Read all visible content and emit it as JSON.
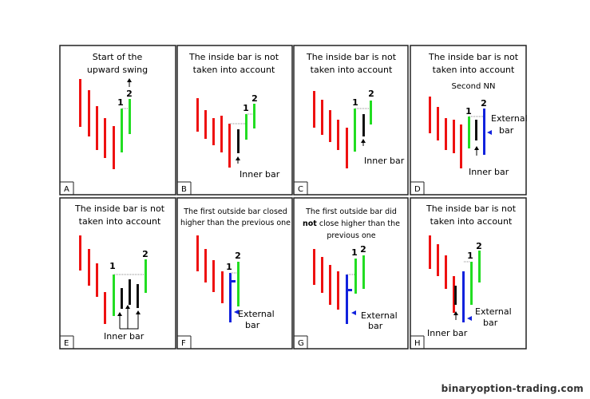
{
  "panels": [
    {
      "id": "A",
      "corner_label": "A",
      "title_lines": [
        "Start of the",
        "upward swing"
      ],
      "bar_labels": [
        "1",
        "2"
      ]
    },
    {
      "id": "B",
      "corner_label": "B",
      "title_lines": [
        "The inside bar is not",
        "taken into account"
      ],
      "bar_labels": [
        "1",
        "2"
      ],
      "notes": {
        "inner": "Inner bar"
      }
    },
    {
      "id": "C",
      "corner_label": "C",
      "title_lines": [
        "The inside bar is not",
        "taken into account"
      ],
      "bar_labels": [
        "1",
        "2"
      ],
      "notes": {
        "inner": "Inner bar"
      }
    },
    {
      "id": "D",
      "corner_label": "D",
      "title_lines": [
        "The inside bar is not",
        "taken into account"
      ],
      "subtitle": "Second NN",
      "bar_labels": [
        "1",
        "2"
      ],
      "notes": {
        "external_1": "External",
        "external_2": "bar",
        "inner": "Inner bar"
      }
    },
    {
      "id": "E",
      "corner_label": "E",
      "title_lines": [
        "The inside bar is not",
        "taken into account"
      ],
      "bar_labels": [
        "1",
        "2"
      ],
      "notes": {
        "inner": "Inner bar"
      }
    },
    {
      "id": "F",
      "corner_label": "F",
      "title_lines": [
        "The first outside bar closed",
        "higher than the previous one"
      ],
      "bar_labels": [
        "1",
        "2"
      ],
      "notes": {
        "external_1": "External",
        "external_2": "bar"
      }
    },
    {
      "id": "G",
      "corner_label": "G",
      "title_lines": [
        "The first outside bar did",
        "close higher than the",
        "previous one"
      ],
      "title_bold_word": "not",
      "bar_labels": [
        "1",
        "2"
      ],
      "notes": {
        "external_1": "External",
        "external_2": "bar"
      }
    },
    {
      "id": "H",
      "corner_label": "H",
      "title_lines": [
        "The inside bar is not",
        "taken into account"
      ],
      "bar_labels": [
        "1",
        "2"
      ],
      "notes": {
        "external_1": "External",
        "external_2": "bar",
        "inner": "Inner bar"
      }
    }
  ],
  "watermark": "binaryoption-trading.com",
  "colors": {
    "down": "#ee1111",
    "up": "#22dd22",
    "inner": "#111111",
    "outside": "#1122dd",
    "frame": "#222222",
    "dotted": "#888888"
  }
}
